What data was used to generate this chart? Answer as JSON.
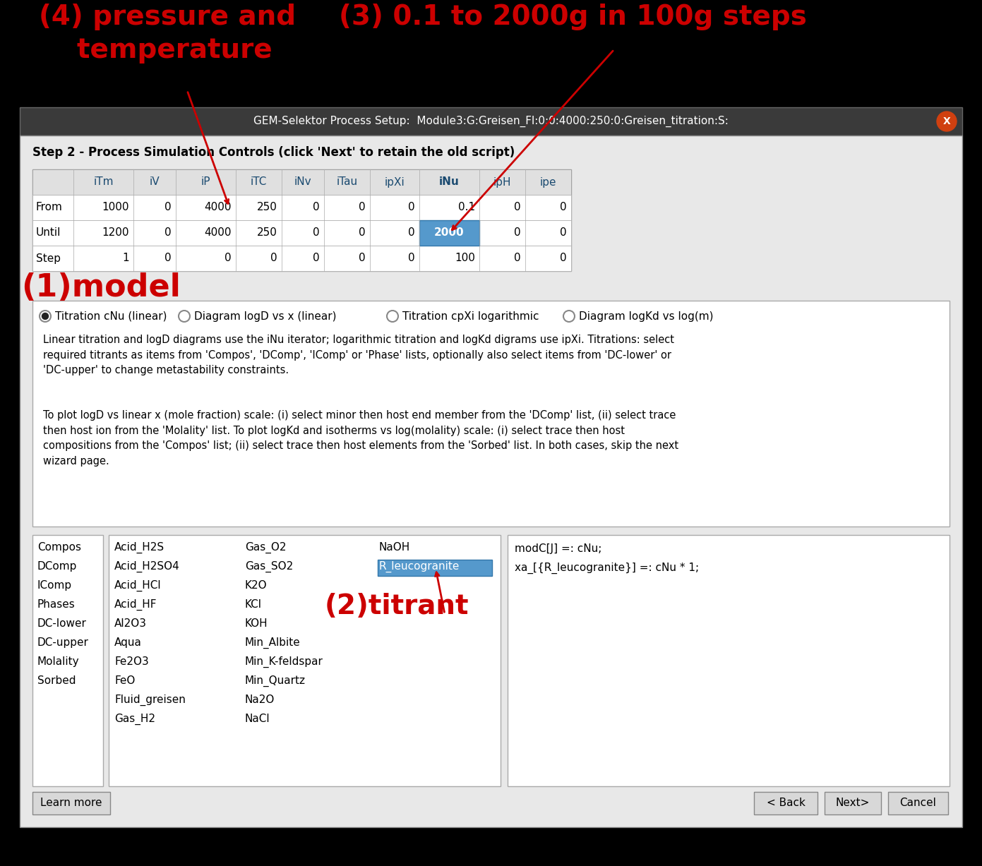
{
  "bg_color": "#000000",
  "dialog_title_bg": "#3a3a3a",
  "dialog_title_text": "GEM-Selektor Process Setup:  Module3:G:Greisen_Fl:0:0:4000:250:0:Greisen_titration:S:",
  "dialog_title_color": "#ffffff",
  "close_btn_color": "#d04010",
  "annotation_color": "#cc0000",
  "annotation_1": "(4) pressure and\n    temperature",
  "annotation_3": "(3) 0.1 to 2000g in 100g steps",
  "annotation_1_model": "(1)model",
  "annotation_2_titrant": "(2)titrant",
  "step2_label": "Step 2 - Process Simulation Controls (click 'Next' to retain the old script)",
  "table_headers": [
    "",
    "iTm",
    "iV",
    "iP",
    "iTC",
    "iNv",
    "iTau",
    "ipXi",
    "iNu",
    "ipH",
    "ipe"
  ],
  "table_rows": [
    [
      "From",
      "1000",
      "0",
      "4000",
      "250",
      "0",
      "0",
      "0",
      "0.1",
      "0",
      "0"
    ],
    [
      "Until",
      "1200",
      "0",
      "4000",
      "250",
      "0",
      "0",
      "0",
      "2000",
      "0",
      "0"
    ],
    [
      "Step",
      "1",
      "0",
      "0",
      "0",
      "0",
      "0",
      "0",
      "100",
      "0",
      "0"
    ]
  ],
  "highlight_cell_row": 1,
  "highlight_cell_col": 8,
  "highlight_color": "#5599cc",
  "radio_options": [
    "Titration cNu (linear)",
    "Diagram logD vs x (linear)",
    "Titration cpXi logarithmic",
    "Diagram logKd vs log(m)"
  ],
  "radio_selected": 0,
  "info_text1": "Linear titration and logD diagrams use the iNu iterator; logarithmic titration and logKd digrams use ipXi. Titrations: select\nrequired titrants as items from 'Compos', 'DComp', 'IComp' or 'Phase' lists, optionally also select items from 'DC-lower' or\n'DC-upper' to change metastability constraints.",
  "info_text2": "To plot logD vs linear x (mole fraction) scale: (i) select minor then host end member from the 'DComp' list, (ii) select trace\nthen host ion from the 'Molality' list. To plot logKd and isotherms vs log(molality) scale: (i) select trace then host\ncompositions from the 'Compos' list; (ii) select trace then host elements from the 'Sorbed' list. In both cases, skip the next\nwizard page.",
  "left_list": [
    "Compos",
    "DComp",
    "IComp",
    "Phases",
    "DC-lower",
    "DC-upper",
    "Molality",
    "Sorbed"
  ],
  "middle_col1": [
    "Acid_H2S",
    "Acid_H2SO4",
    "Acid_HCl",
    "Acid_HF",
    "Al2O3",
    "Aqua",
    "Fe2O3",
    "FeO",
    "Fluid_greisen",
    "Gas_H2"
  ],
  "middle_col2": [
    "Gas_O2",
    "Gas_SO2",
    "K2O",
    "KCl",
    "KOH",
    "Min_Albite",
    "Min_K-feldspar",
    "Min_Quartz",
    "Na2O",
    "NaCl"
  ],
  "middle_col3": [
    "NaOH",
    "R_leucogranite"
  ],
  "selected_item": "R_leucogranite",
  "right_text": "modC[J] =: cNu;\nxa_[{R_leucogranite}] =: cNu * 1;",
  "btn_learn": "Learn more",
  "btn_back": "< ̲Back",
  "btn_next": "Next̲>",
  "btn_cancel": "Cancel",
  "body_color": "#e8e8e8",
  "table_header_color": "#e0e0e0",
  "table_text_color": "#1a4a70",
  "body_text_color": "#111111"
}
